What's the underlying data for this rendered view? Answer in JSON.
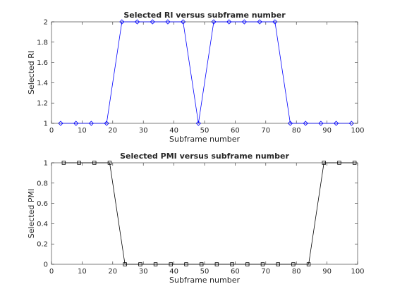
{
  "chart_data": [
    {
      "type": "line",
      "title": "Selected RI versus subframe number",
      "xlabel": "Subframe number",
      "ylabel": "Selected RI",
      "xlim": [
        0,
        100
      ],
      "ylim": [
        1,
        2
      ],
      "xticks": [
        0,
        10,
        20,
        30,
        40,
        50,
        60,
        70,
        80,
        90,
        100
      ],
      "yticks": [
        1,
        1.2,
        1.4,
        1.6,
        1.8,
        2
      ],
      "ytick_labels": [
        "1",
        "1.2",
        "1.4",
        "1.6",
        "1.8",
        "2"
      ],
      "grid": false,
      "series": [
        {
          "color": "#0000ff",
          "marker": "diamond",
          "x": [
            3,
            8,
            13,
            18,
            23,
            28,
            33,
            38,
            43,
            48,
            53,
            58,
            63,
            68,
            73,
            78,
            83,
            88,
            93,
            98
          ],
          "y": [
            1,
            1,
            1,
            1,
            2,
            2,
            2,
            2,
            2,
            1,
            2,
            2,
            2,
            2,
            2,
            1,
            1,
            1,
            1,
            1
          ]
        }
      ]
    },
    {
      "type": "line",
      "title": "Selected PMI versus subframe number",
      "xlabel": "Subframe number",
      "ylabel": "Selected PMI",
      "xlim": [
        0,
        100
      ],
      "ylim": [
        0,
        1
      ],
      "xticks": [
        0,
        10,
        20,
        30,
        40,
        50,
        60,
        70,
        80,
        90,
        100
      ],
      "yticks": [
        0,
        0.2,
        0.4,
        0.6,
        0.8,
        1
      ],
      "ytick_labels": [
        "0",
        "0.2",
        "0.4",
        "0.6",
        "0.8",
        "1"
      ],
      "grid": false,
      "series": [
        {
          "color": "#000000",
          "marker": "square",
          "x": [
            4,
            9,
            14,
            19,
            24,
            29,
            34,
            39,
            44,
            49,
            54,
            59,
            64,
            69,
            74,
            79,
            84,
            89,
            94,
            99
          ],
          "y": [
            1,
            1,
            1,
            1,
            0,
            0,
            0,
            0,
            0,
            0,
            0,
            0,
            0,
            0,
            0,
            0,
            0,
            1,
            1,
            1
          ]
        }
      ]
    }
  ]
}
